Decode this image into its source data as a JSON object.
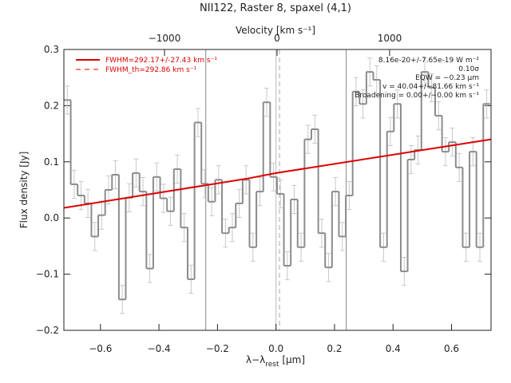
{
  "chart_data": {
    "type": "histogram",
    "title": "NII122, Raster 8, spaxel (4,1)",
    "xlabel": "λ−λ",
    "xlabel_sub": "rest",
    "xlabel_unit": " [μm]",
    "ylabel": "Flux density [Jy]",
    "x2label": "Velocity [km s⁻¹]",
    "xlim": [
      -0.725,
      0.735
    ],
    "ylim": [
      -0.2,
      0.3
    ],
    "x2lim": [
      -1894,
      1901
    ],
    "xticks": [
      {
        "value": -0.6,
        "label": "−0.6"
      },
      {
        "value": -0.4,
        "label": "−0.4"
      },
      {
        "value": -0.2,
        "label": "−0.2"
      },
      {
        "value": 0,
        "label": "0.0"
      },
      {
        "value": 0.2,
        "label": "0.2"
      },
      {
        "value": 0.4,
        "label": "0.4"
      },
      {
        "value": 0.6,
        "label": "0.6"
      }
    ],
    "yticks": [
      {
        "value": -0.2,
        "label": "−0.2"
      },
      {
        "value": -0.1,
        "label": "−0.1"
      },
      {
        "value": 0,
        "label": "0.0"
      },
      {
        "value": 0.1,
        "label": "0.1"
      },
      {
        "value": 0.2,
        "label": "0.2"
      },
      {
        "value": 0.3,
        "label": "0.3"
      }
    ],
    "x2ticks": [
      {
        "value": -1000,
        "label": "−1000"
      },
      0,
      1000
    ],
    "bins": [
      -0.725,
      -0.7015,
      -0.678,
      -0.6545,
      -0.631,
      -0.6075,
      -0.584,
      -0.5605,
      -0.537,
      -0.5135,
      -0.49,
      -0.4665,
      -0.443,
      -0.4195,
      -0.396,
      -0.3725,
      -0.349,
      -0.3255,
      -0.302,
      -0.2785,
      -0.255,
      -0.2315,
      -0.208,
      -0.1845,
      -0.161,
      -0.1375,
      -0.114,
      -0.0905,
      -0.067,
      -0.0435,
      -0.02,
      0.0035,
      0.027,
      0.0505,
      0.074,
      0.0975,
      0.121,
      0.1445,
      0.168,
      0.1915,
      0.215,
      0.2385,
      0.262,
      0.2855,
      0.309,
      0.3325,
      0.356,
      0.3795,
      0.403,
      0.4265,
      0.45,
      0.4735,
      0.497,
      0.5205,
      0.544,
      0.5675,
      0.591,
      0.6145,
      0.638,
      0.6615,
      0.685,
      0.7085,
      0.732
    ],
    "values": [
      0.21,
      0.06,
      0.04,
      0.026,
      -0.033,
      0.005,
      0.05,
      0.077,
      -0.145,
      0.036,
      0.08,
      0.047,
      -0.09,
      0.073,
      0.035,
      0.012,
      0.087,
      -0.017,
      -0.109,
      0.17,
      0.061,
      0.029,
      0.068,
      -0.027,
      -0.017,
      0.026,
      0.068,
      -0.052,
      0.047,
      0.206,
      0.073,
      0.043,
      -0.085,
      0.033,
      -0.052,
      0.14,
      0.158,
      -0.027,
      -0.088,
      0.047,
      -0.033,
      0.04,
      0.225,
      0.203,
      0.26,
      0.246,
      -0.052,
      0.154,
      0.203,
      -0.095,
      0.104,
      0.121,
      0.26,
      0.232,
      0.182,
      0.118,
      0.135,
      0.09,
      -0.052,
      0.118,
      -0.052,
      0.203
    ],
    "error": 0.025,
    "color": "#8c8c8c",
    "fit": {
      "name": "FWHM=292.17+/-27.43 km s⁻¹",
      "color": "#dd0000",
      "x": [
        -0.725,
        -0.1,
        0.0,
        0.735
      ],
      "values": [
        0.018,
        0.07,
        0.08,
        0.14
      ]
    },
    "fit_th": {
      "name": "FWHM_th=292.86 km s⁻¹",
      "color": "#dd0000"
    },
    "vlines": [
      {
        "x": -0.24,
        "style": "solid",
        "color": "#888888"
      },
      {
        "x": 0,
        "style": "solid",
        "color": "#bbbbbb"
      },
      {
        "x": 0.012,
        "style": "dashed",
        "color": "#aaaaaa"
      },
      {
        "x": 0.24,
        "style": "solid",
        "color": "#888888"
      }
    ],
    "annotations": [
      "8.16e-20+/-7.65e-19 W m⁻²",
      "0.10σ",
      "EQW = −0.23 μm",
      "v = 40.04+/−81.66 km s⁻¹",
      "Broadening = 0.00+/−0.00 km s⁻¹"
    ]
  }
}
